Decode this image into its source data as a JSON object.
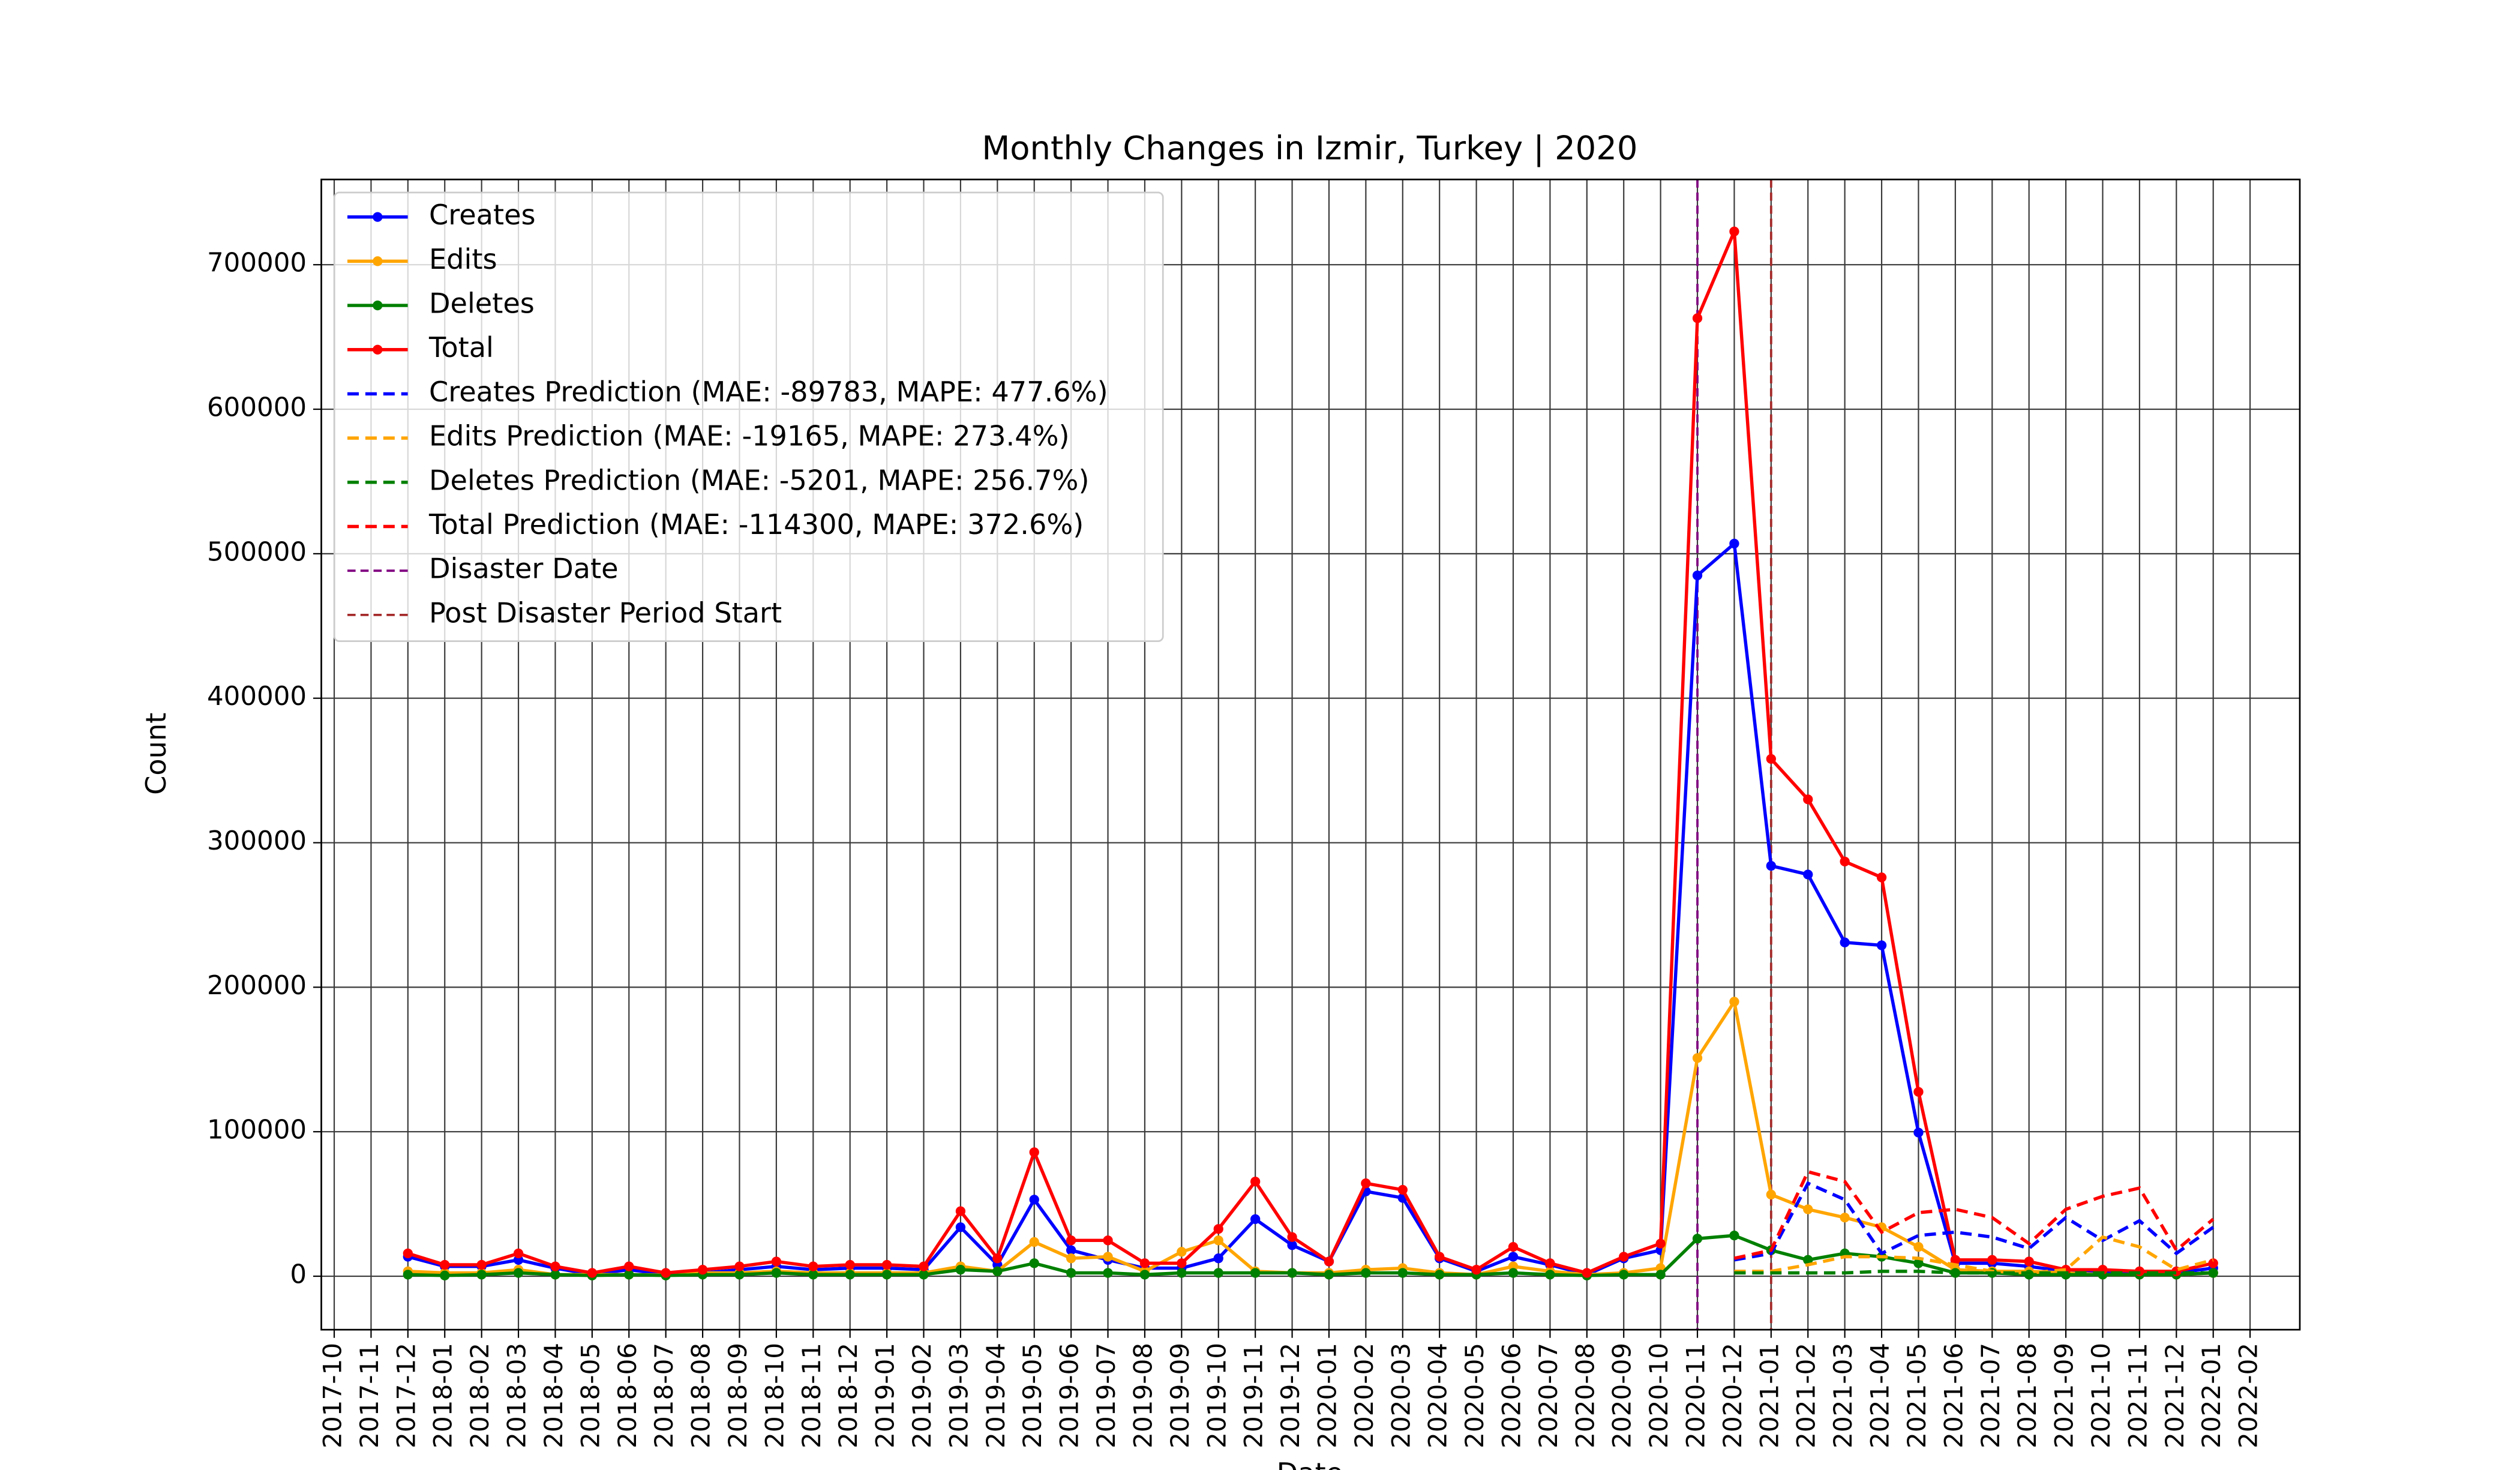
{
  "chart_data": {
    "type": "line",
    "title": "Monthly Changes in Izmir, Turkey | 2020",
    "xlabel": "Date",
    "ylabel": "Count",
    "x": [
      "2017-12",
      "2018-01",
      "2018-02",
      "2018-03",
      "2018-04",
      "2018-05",
      "2018-06",
      "2018-07",
      "2018-08",
      "2018-09",
      "2018-10",
      "2018-11",
      "2018-12",
      "2019-01",
      "2019-02",
      "2019-03",
      "2019-04",
      "2019-05",
      "2019-06",
      "2019-07",
      "2019-08",
      "2019-09",
      "2019-10",
      "2019-11",
      "2019-12",
      "2020-01",
      "2020-02",
      "2020-03",
      "2020-04",
      "2020-05",
      "2020-06",
      "2020-07",
      "2020-08",
      "2020-09",
      "2020-10",
      "2020-11",
      "2020-12",
      "2021-01",
      "2021-02",
      "2021-03",
      "2021-04",
      "2021-05",
      "2021-06",
      "2021-07",
      "2021-08",
      "2021-09",
      "2021-10",
      "2021-11",
      "2021-12",
      "2022-01"
    ],
    "series": [
      {
        "name": "Creates",
        "color": "blue",
        "style": "solid",
        "marker": true,
        "values": [
          13500,
          6800,
          6800,
          11300,
          5600,
          1100,
          4500,
          1100,
          2300,
          4500,
          6800,
          4500,
          5600,
          5600,
          4500,
          33900,
          7900,
          53000,
          18000,
          11300,
          5600,
          5600,
          12400,
          39500,
          21500,
          10200,
          58700,
          54200,
          12400,
          3400,
          13500,
          7900,
          1100,
          12400,
          18000,
          485000,
          507000,
          284000,
          278000,
          231000,
          229000,
          99400,
          9000,
          9000,
          6800,
          3400,
          2300,
          2300,
          2300,
          5600
        ]
      },
      {
        "name": "Edits",
        "color": "orange",
        "style": "solid",
        "marker": true,
        "values": [
          3400,
          2300,
          2300,
          4500,
          1100,
          1100,
          1100,
          800,
          2300,
          2300,
          3400,
          2300,
          2300,
          2300,
          2300,
          6800,
          3400,
          23700,
          12400,
          13500,
          3400,
          16900,
          24800,
          3400,
          2300,
          2300,
          4500,
          5600,
          2300,
          1100,
          6800,
          3400,
          1100,
          2300,
          5600,
          151000,
          190000,
          56500,
          46300,
          40600,
          33900,
          20300,
          4500,
          3400,
          3400,
          2300,
          1100,
          1100,
          1100,
          2300
        ]
      },
      {
        "name": "Deletes",
        "color": "green",
        "style": "solid",
        "marker": true,
        "values": [
          1100,
          500,
          1100,
          2300,
          1100,
          500,
          1100,
          500,
          1100,
          1100,
          2300,
          1100,
          1100,
          1100,
          1100,
          4500,
          3400,
          9000,
          2300,
          2300,
          1100,
          2300,
          2300,
          2300,
          2300,
          1100,
          2300,
          2300,
          1100,
          1100,
          2300,
          1100,
          500,
          1100,
          1100,
          26000,
          28200,
          18000,
          11300,
          15800,
          13500,
          9000,
          2300,
          2300,
          1100,
          1100,
          1100,
          1100,
          1100,
          2300
        ]
      },
      {
        "name": "Total",
        "color": "red",
        "style": "solid",
        "marker": true,
        "values": [
          15800,
          7900,
          7900,
          15800,
          6800,
          2300,
          6800,
          2300,
          4500,
          6800,
          10200,
          6800,
          7900,
          7900,
          6800,
          45000,
          12400,
          85800,
          24800,
          24800,
          9000,
          9000,
          32700,
          65500,
          27100,
          10200,
          64300,
          59800,
          13500,
          4500,
          20300,
          9000,
          2300,
          13500,
          22600,
          663000,
          723000,
          358000,
          330000,
          287000,
          276000,
          127600,
          11300,
          11300,
          10200,
          4500,
          4500,
          3400,
          3400,
          9000
        ]
      },
      {
        "name": "Creates Prediction (MAE: -89783, MAPE: 477.6%)",
        "color": "blue",
        "style": "dashed",
        "marker": false,
        "values": [
          null,
          null,
          null,
          null,
          null,
          null,
          null,
          null,
          null,
          null,
          null,
          null,
          null,
          null,
          null,
          null,
          null,
          null,
          null,
          null,
          null,
          null,
          null,
          null,
          null,
          null,
          null,
          null,
          null,
          null,
          null,
          null,
          null,
          null,
          null,
          null,
          11300,
          15800,
          64300,
          53000,
          15800,
          28200,
          30500,
          27100,
          19200,
          40600,
          24800,
          38400,
          15800,
          33900
        ]
      },
      {
        "name": "Edits Prediction (MAE: -19165, MAPE: 273.4%)",
        "color": "orange",
        "style": "dashed",
        "marker": false,
        "values": [
          null,
          null,
          null,
          null,
          null,
          null,
          null,
          null,
          null,
          null,
          null,
          null,
          null,
          null,
          null,
          null,
          null,
          null,
          null,
          null,
          null,
          null,
          null,
          null,
          null,
          null,
          null,
          null,
          null,
          null,
          null,
          null,
          null,
          null,
          null,
          null,
          3400,
          3400,
          7900,
          13500,
          13500,
          12400,
          7900,
          3400,
          2300,
          4500,
          27100,
          20300,
          4500,
          11300
        ]
      },
      {
        "name": "Deletes Prediction (MAE: -5201, MAPE: 256.7%)",
        "color": "green",
        "style": "dashed",
        "marker": false,
        "values": [
          null,
          null,
          null,
          null,
          null,
          null,
          null,
          null,
          null,
          null,
          null,
          null,
          null,
          null,
          null,
          null,
          null,
          null,
          null,
          null,
          null,
          null,
          null,
          null,
          null,
          null,
          null,
          null,
          null,
          null,
          null,
          null,
          null,
          null,
          null,
          null,
          2300,
          2300,
          2300,
          2300,
          3400,
          3400,
          2300,
          2300,
          2300,
          2300,
          2300,
          2300,
          2300,
          2300
        ]
      },
      {
        "name": "Total Prediction (MAE: -114300, MAPE: 372.6%)",
        "color": "red",
        "style": "dashed",
        "marker": false,
        "values": [
          null,
          null,
          null,
          null,
          null,
          null,
          null,
          null,
          null,
          null,
          null,
          null,
          null,
          null,
          null,
          null,
          null,
          null,
          null,
          null,
          null,
          null,
          null,
          null,
          null,
          null,
          null,
          null,
          null,
          null,
          null,
          null,
          null,
          null,
          null,
          null,
          12400,
          18000,
          72300,
          65500,
          30500,
          44000,
          46300,
          40600,
          22600,
          46300,
          55300,
          61000,
          18000,
          39500
        ]
      }
    ],
    "vlines": [
      {
        "name": "Disaster Date",
        "x": "2020-11",
        "color": "purple"
      },
      {
        "name": "Post Disaster Period Start",
        "x": "2021-01",
        "color": "brown"
      }
    ],
    "xticks": [
      "2017-10",
      "2017-11",
      "2017-12",
      "2018-01",
      "2018-02",
      "2018-03",
      "2018-04",
      "2018-05",
      "2018-06",
      "2018-07",
      "2018-08",
      "2018-09",
      "2018-10",
      "2018-11",
      "2018-12",
      "2019-01",
      "2019-02",
      "2019-03",
      "2019-04",
      "2019-05",
      "2019-06",
      "2019-07",
      "2019-08",
      "2019-09",
      "2019-10",
      "2019-11",
      "2019-12",
      "2020-01",
      "2020-02",
      "2020-03",
      "2020-04",
      "2020-05",
      "2020-06",
      "2020-07",
      "2020-08",
      "2020-09",
      "2020-10",
      "2020-11",
      "2020-12",
      "2021-01",
      "2021-02",
      "2021-03",
      "2021-04",
      "2021-05",
      "2021-06",
      "2021-07",
      "2021-08",
      "2021-09",
      "2021-10",
      "2021-11",
      "2021-12",
      "2022-01",
      "2022-02"
    ],
    "ylim": [
      -37000,
      759000
    ],
    "yticks": [
      0,
      100000,
      200000,
      300000,
      400000,
      500000,
      600000,
      700000
    ],
    "grid": true,
    "legend": "upper left"
  }
}
